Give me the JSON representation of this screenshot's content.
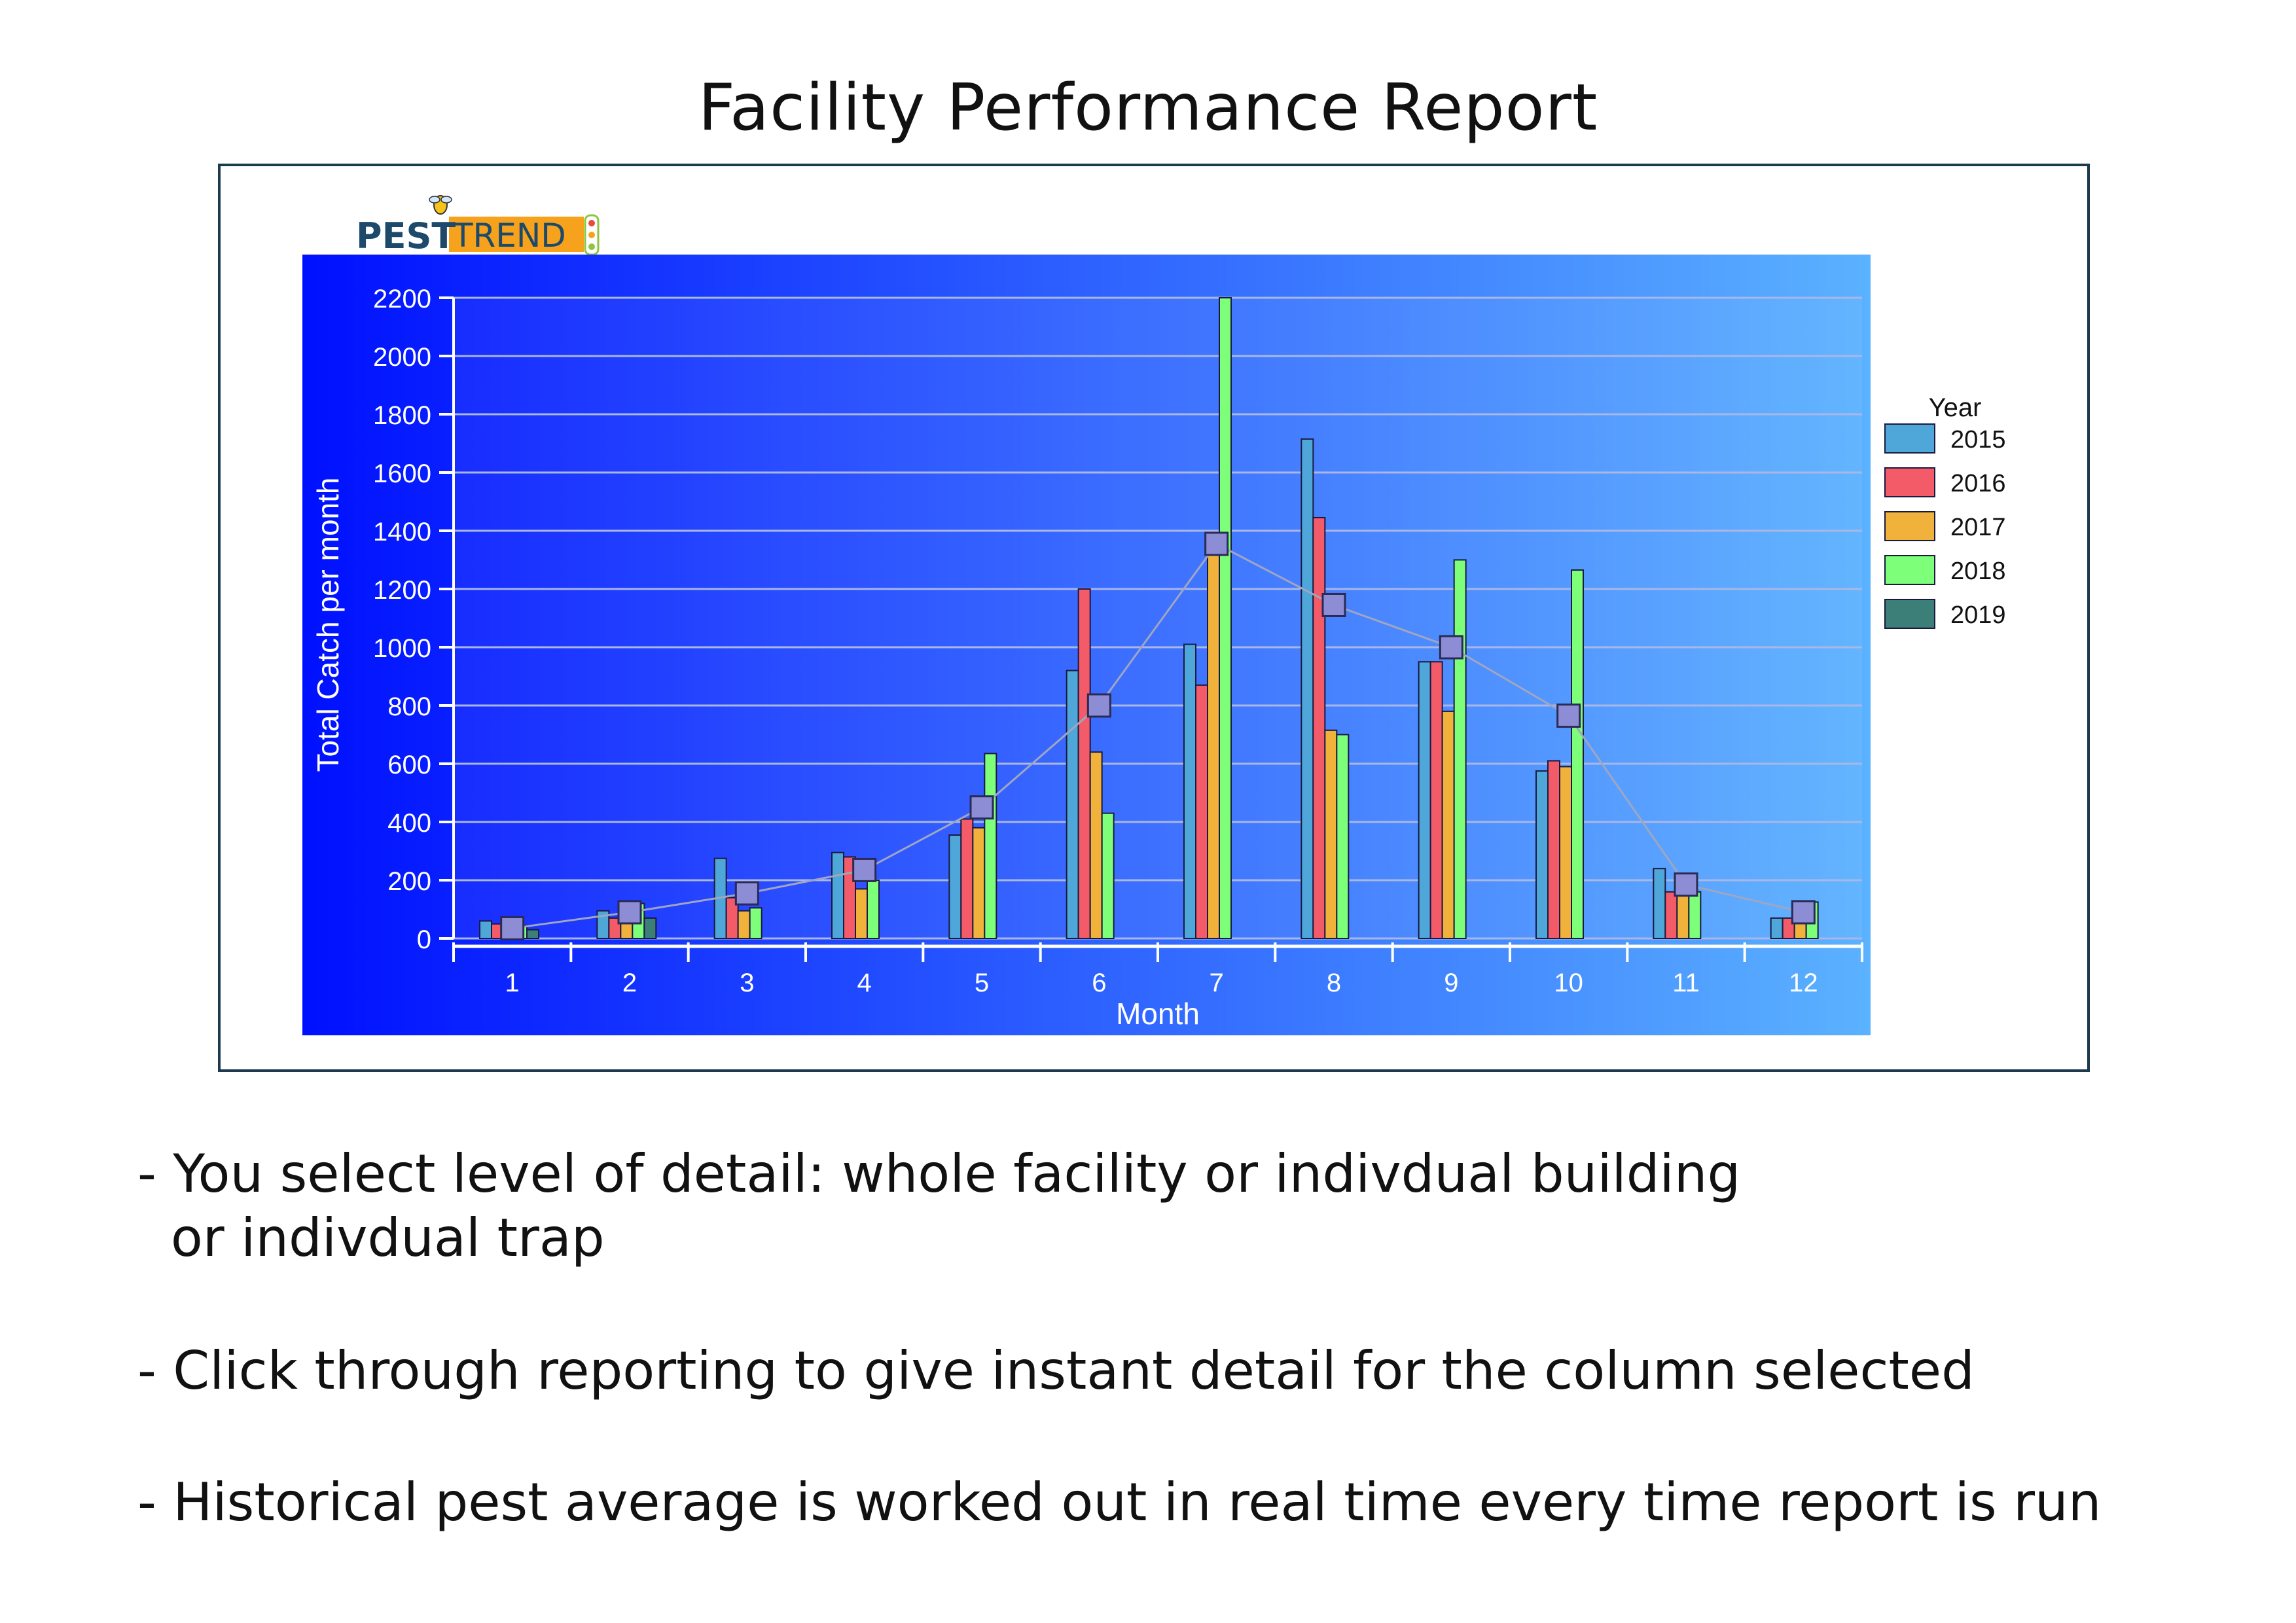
{
  "title": "Facility Performance Report",
  "logo": {
    "text_pest": "PEST",
    "text_trend": "TREND",
    "colors": {
      "pest": "#1d4a6b",
      "trend_bg": "#f6a21c",
      "bug": "#8cc63f"
    }
  },
  "colors": {
    "frame": "#1c3a4d",
    "chart_bg_left": "#0010ff",
    "chart_bg_right": "#5bb2ff",
    "gridline": "#a9b7e6",
    "series": {
      "2015": "#4ea6d9",
      "2016": "#f45b68",
      "2017": "#f0b23a",
      "2018": "#7dff7a",
      "2019": "#3c7f78"
    },
    "average_marker": "#8c8dd4",
    "average_line": "#a0a6c0"
  },
  "chart_data": {
    "type": "bar",
    "xlabel": "Month",
    "ylabel": "Total Catch per month",
    "categories": [
      "1",
      "2",
      "3",
      "4",
      "5",
      "6",
      "7",
      "8",
      "9",
      "10",
      "11",
      "12"
    ],
    "ylim": [
      0,
      2200
    ],
    "yticks": [
      "0",
      "200",
      "400",
      "600",
      "800",
      "1000",
      "1200",
      "1400",
      "1600",
      "1800",
      "2000",
      "2200"
    ],
    "grid": true,
    "legend_title": "Year",
    "legend_position": "right",
    "series": [
      {
        "name": "2015",
        "values": [
          60,
          95,
          275,
          295,
          355,
          920,
          1010,
          1715,
          950,
          575,
          240,
          70
        ]
      },
      {
        "name": "2016",
        "values": [
          50,
          70,
          140,
          280,
          410,
          1200,
          870,
          1445,
          950,
          610,
          160,
          70
        ]
      },
      {
        "name": "2017",
        "values": [
          40,
          55,
          95,
          170,
          380,
          640,
          1340,
          715,
          780,
          590,
          160,
          60
        ]
      },
      {
        "name": "2018",
        "values": [
          45,
          120,
          105,
          200,
          635,
          430,
          2200,
          700,
          1300,
          1265,
          160,
          125
        ]
      },
      {
        "name": "2019",
        "values": [
          30,
          70,
          0,
          0,
          0,
          0,
          0,
          0,
          0,
          0,
          0,
          0
        ]
      }
    ],
    "average": {
      "type": "line",
      "values": [
        35,
        90,
        155,
        235,
        450,
        800,
        1355,
        1145,
        1000,
        765,
        185,
        90
      ]
    }
  },
  "bullets": [
    {
      "line1": "- You select level of detail: whole facility or indivdual building",
      "line2": "  or indivdual trap"
    },
    {
      "line1": "- Click through reporting to give instant detail for the column selected"
    },
    {
      "line1": "- Historical pest average is worked out in real time every time report is run"
    }
  ]
}
